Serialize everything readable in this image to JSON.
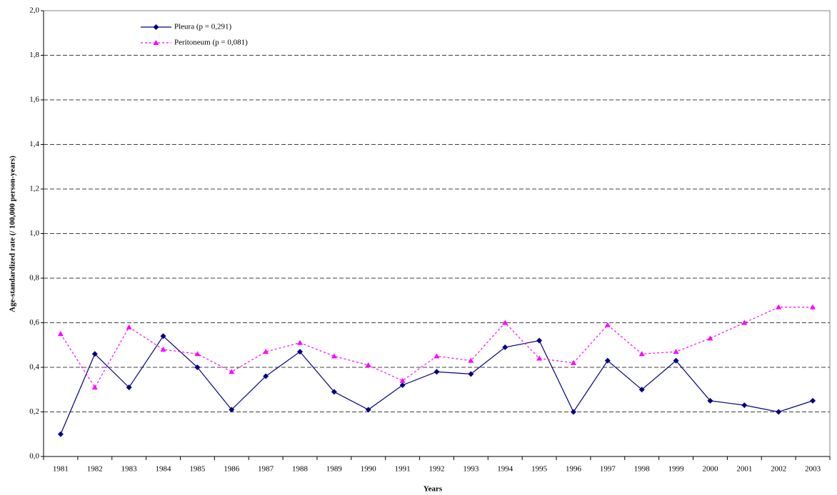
{
  "chart_data": {
    "type": "line",
    "x_label": "Years",
    "y_label": "Age-standardized rate (/ 100,000 person-years)",
    "categories": [
      "1981",
      "1982",
      "1983",
      "1984",
      "1985",
      "1986",
      "1987",
      "1988",
      "1989",
      "1990",
      "1991",
      "1992",
      "1993",
      "1994",
      "1995",
      "1996",
      "1997",
      "1998",
      "1999",
      "2000",
      "2001",
      "2002",
      "2003"
    ],
    "series": [
      {
        "name": "Pleura (p = 0,291)",
        "color": "#000080",
        "marker": "diamond",
        "dashed": false,
        "values": [
          0.1,
          0.46,
          0.31,
          0.54,
          0.4,
          0.21,
          0.36,
          0.47,
          0.29,
          0.21,
          0.32,
          0.38,
          0.37,
          0.49,
          0.52,
          0.2,
          0.43,
          0.3,
          0.43,
          0.25,
          0.23,
          0.2,
          0.25
        ]
      },
      {
        "name": "Peritoneum (p = 0,081)",
        "color": "#ff00ff",
        "marker": "triangle",
        "dashed": true,
        "values": [
          0.55,
          0.31,
          0.58,
          0.48,
          0.46,
          0.38,
          0.47,
          0.51,
          0.45,
          0.41,
          0.34,
          0.45,
          0.43,
          0.6,
          0.44,
          0.42,
          0.59,
          0.46,
          0.47,
          0.53,
          0.6,
          0.67,
          0.67
        ]
      }
    ],
    "ylim": [
      0,
      2
    ],
    "yticks": [
      {
        "value": 0,
        "label": "0,0"
      },
      {
        "value": 0.2,
        "label": "0,2"
      },
      {
        "value": 0.4,
        "label": "0,4"
      },
      {
        "value": 0.6,
        "label": "0,6"
      },
      {
        "value": 0.8,
        "label": "0,8"
      },
      {
        "value": 1.0,
        "label": "1,0"
      },
      {
        "value": 1.2,
        "label": "1,2"
      },
      {
        "value": 1.4,
        "label": "1,4"
      },
      {
        "value": 1.6,
        "label": "1,6"
      },
      {
        "value": 1.8,
        "label": "1,8"
      },
      {
        "value": 2.0,
        "label": "2,0"
      }
    ],
    "grid": true,
    "legend": "upper left"
  }
}
